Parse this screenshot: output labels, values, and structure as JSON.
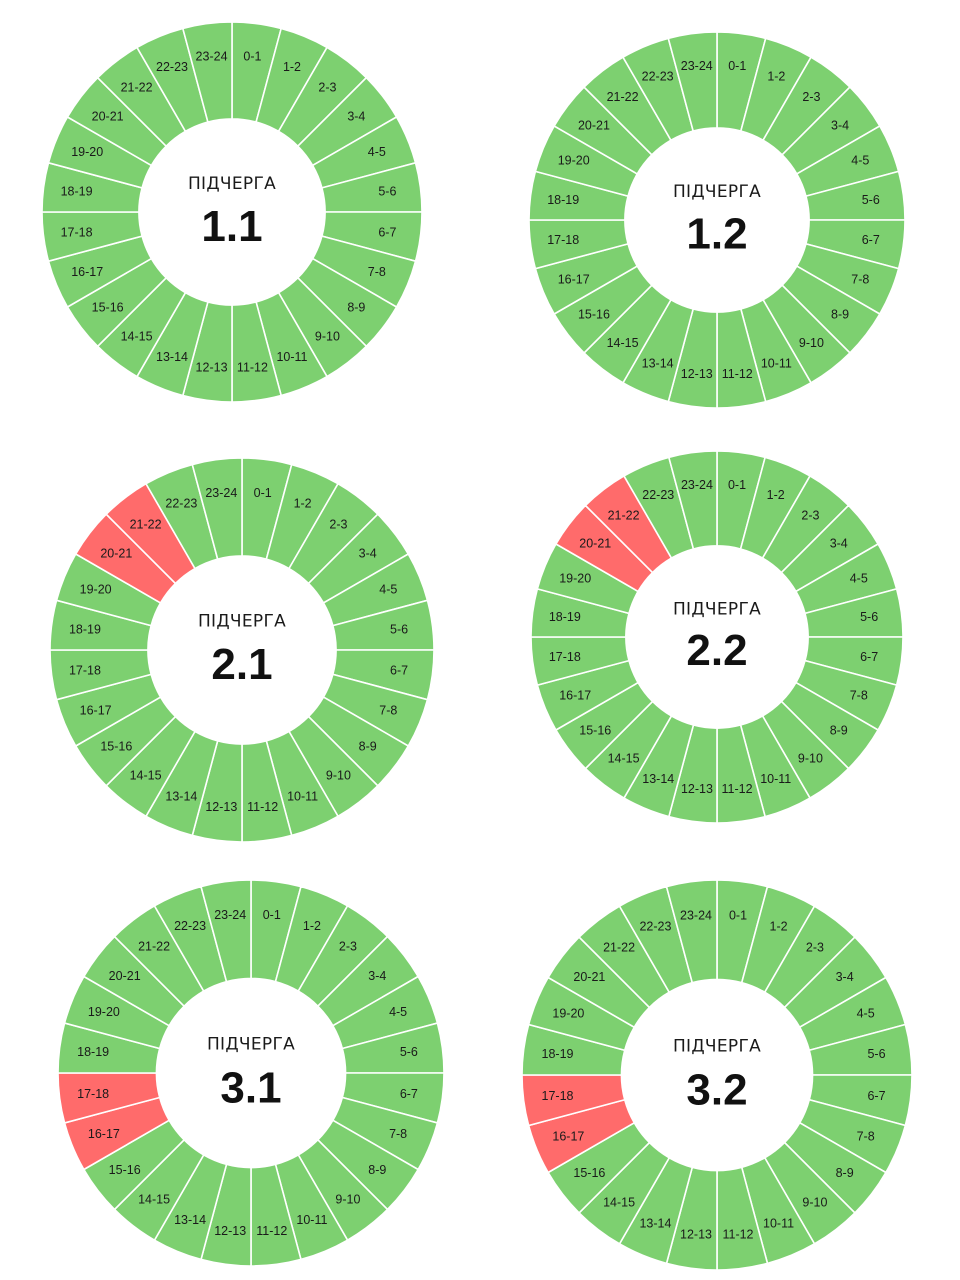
{
  "colors": {
    "on": "#7dd070",
    "off": "#ff6b6b",
    "separator": "#ffffff",
    "text": "#1a1a1a"
  },
  "segment_labels": [
    "0-1",
    "1-2",
    "2-3",
    "3-4",
    "4-5",
    "5-6",
    "6-7",
    "7-8",
    "8-9",
    "9-10",
    "10-11",
    "11-12",
    "12-13",
    "13-14",
    "14-15",
    "15-16",
    "16-17",
    "17-18",
    "18-19",
    "19-20",
    "20-21",
    "21-22",
    "22-23",
    "23-24"
  ],
  "caption": "ПІДЧЕРГА",
  "queues": [
    {
      "id": "1.1",
      "outage_hours": []
    },
    {
      "id": "1.2",
      "outage_hours": []
    },
    {
      "id": "2.1",
      "outage_hours": [
        "20-21",
        "21-22"
      ]
    },
    {
      "id": "2.2",
      "outage_hours": [
        "20-21",
        "21-22"
      ]
    },
    {
      "id": "3.1",
      "outage_hours": [
        "16-17",
        "17-18"
      ]
    },
    {
      "id": "3.2",
      "outage_hours": [
        "16-17",
        "17-18"
      ]
    }
  ]
}
